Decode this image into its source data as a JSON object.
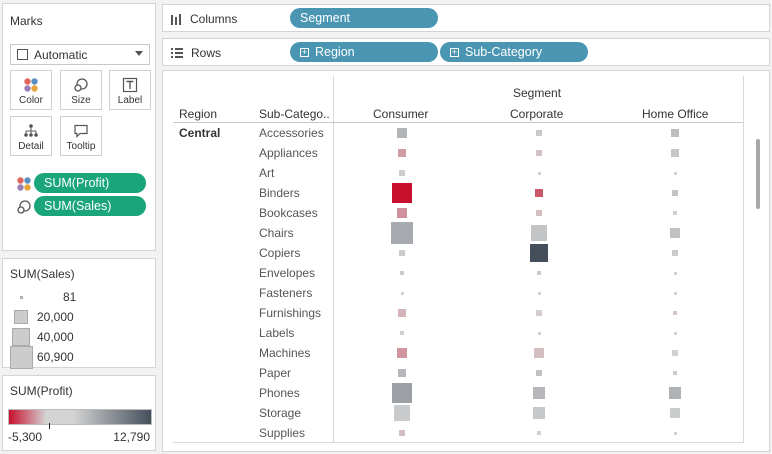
{
  "marks": {
    "title": "Marks",
    "mark_type": "Automatic",
    "buttons": {
      "color": "Color",
      "size": "Size",
      "label": "Label",
      "detail": "Detail",
      "tooltip": "Tooltip"
    },
    "fields": [
      "SUM(Profit)",
      "SUM(Sales)"
    ]
  },
  "size_legend": {
    "title": "SUM(Sales)",
    "items": [
      "81",
      "20,000",
      "40,000",
      "60,900"
    ]
  },
  "color_legend": {
    "title": "SUM(Profit)",
    "min": "-5,300",
    "max": "12,790",
    "colors": {
      "low": "#c8102e",
      "mid": "#d4d4d4",
      "high": "#454f5b"
    }
  },
  "shelves": {
    "columns_label": "Columns",
    "columns_pills": [
      "Segment"
    ],
    "rows_label": "Rows",
    "rows_pills": [
      "Region",
      "Sub-Category"
    ]
  },
  "view": {
    "segment_header": "Segment",
    "region_header": "Region",
    "subcat_header": "Sub-Catego..",
    "segments": [
      "Consumer",
      "Corporate",
      "Home Office"
    ],
    "region": "Central",
    "subcategories": [
      "Accessories",
      "Appliances",
      "Art",
      "Binders",
      "Bookcases",
      "Chairs",
      "Copiers",
      "Envelopes",
      "Fasteners",
      "Furnishings",
      "Labels",
      "Machines",
      "Paper",
      "Phones",
      "Storage",
      "Supplies"
    ],
    "sales": [
      [
        11900,
        8000,
        3000,
        42000,
        12000,
        56000,
        4500,
        2500,
        600,
        9000,
        1200,
        13000,
        7000,
        48000,
        26000,
        4200
      ],
      [
        4400,
        3000,
        1000,
        7500,
        5000,
        32000,
        36900,
        2000,
        500,
        4200,
        1000,
        9500,
        4000,
        18000,
        15000,
        2700
      ],
      [
        8600,
        6000,
        700,
        5500,
        2500,
        12500,
        3500,
        1000,
        300,
        2100,
        400,
        2900,
        2500,
        16000,
        10000,
        900
      ]
    ],
    "profit": [
      [
        3000,
        -1500,
        700,
        -5300,
        -1800,
        4000,
        900,
        900,
        200,
        -900,
        400,
        -1700,
        2800,
        5000,
        1000,
        -600
      ],
      [
        1100,
        -500,
        300,
        -3400,
        -600,
        1500,
        12790,
        800,
        150,
        -200,
        300,
        -600,
        1700,
        2800,
        1200,
        500
      ],
      [
        2100,
        1300,
        200,
        1600,
        400,
        1800,
        1000,
        300,
        100,
        -300,
        150,
        400,
        1100,
        3200,
        800,
        200
      ]
    ]
  }
}
